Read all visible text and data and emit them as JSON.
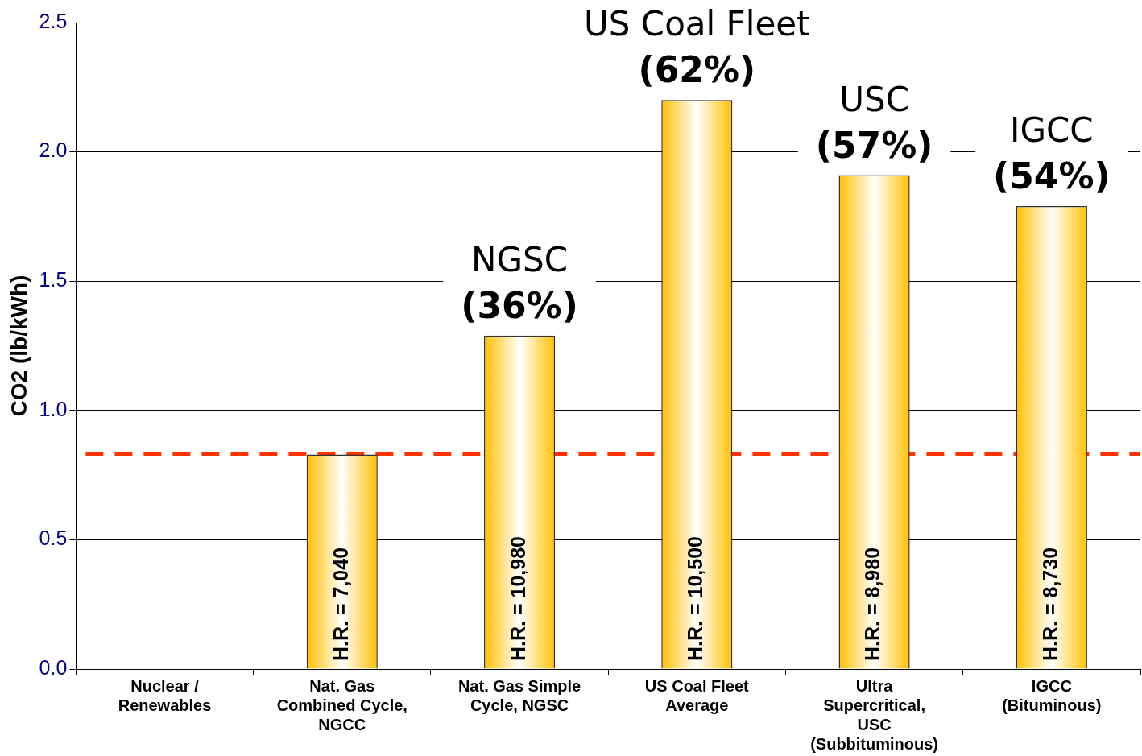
{
  "chart_data": {
    "type": "bar",
    "ylabel": "CO2 (lb/kWh)",
    "categories": [
      "Nuclear /\nRenewables",
      "Nat. Gas\nCombined Cycle,\nNGCC",
      "Nat. Gas Simple\nCycle, NGSC",
      "US Coal Fleet\nAverage",
      "Ultra\nSupercritical,\nUSC\n(Subbituminous)",
      "IGCC\n(Bituminous)"
    ],
    "values": [
      0,
      0.83,
      1.29,
      2.2,
      1.91,
      1.79
    ],
    "color": "#ffc000",
    "ylim": [
      0,
      2.5
    ],
    "yticks": [
      {
        "value": 0,
        "label": "0.0"
      },
      {
        "value": 0.5,
        "label": "0.5"
      },
      {
        "value": 1,
        "label": "1.0"
      },
      {
        "value": 1.5,
        "label": "1.5"
      },
      {
        "value": 2,
        "label": "2.0"
      },
      {
        "value": 2.5,
        "label": "2.5"
      }
    ],
    "grid": "y",
    "legend": false,
    "ref_lines": [
      {
        "axis": "y",
        "value": 0.83,
        "color": "#ff3300",
        "line_style": "dashed"
      }
    ],
    "annotations": [
      {
        "text": "H.R. = 7,040",
        "x": "Nat. Gas\nCombined Cycle,\nNGCC",
        "y": 0
      },
      {
        "text": "H.R. = 10,980",
        "x": "Nat. Gas Simple\nCycle, NGSC",
        "y": 0
      },
      {
        "text": "H.R. = 10,500",
        "x": "US Coal Fleet\nAverage",
        "y": 0
      },
      {
        "text": "H.R. = 8,980",
        "x": "Ultra\nSupercritical,\nUSC\n(Subbituminous)",
        "y": 0
      },
      {
        "text": "H.R. = 8,730",
        "x": "IGCC\n(Bituminous)",
        "y": 0
      },
      {
        "text": "NGSC\n(36%)",
        "x": "Nat. Gas Simple\nCycle, NGSC",
        "y": 1.29
      },
      {
        "text": "US Coal Fleet\n(62%)",
        "x": "US Coal Fleet\nAverage",
        "y": 2.2
      },
      {
        "text": "USC\n(57%)",
        "x": "Ultra\nSupercritical,\nUSC\n(Subbituminous)",
        "y": 1.91
      },
      {
        "text": "IGCC\n(54%)",
        "x": "IGCC\n(Bituminous)",
        "y": 1.79
      }
    ]
  }
}
